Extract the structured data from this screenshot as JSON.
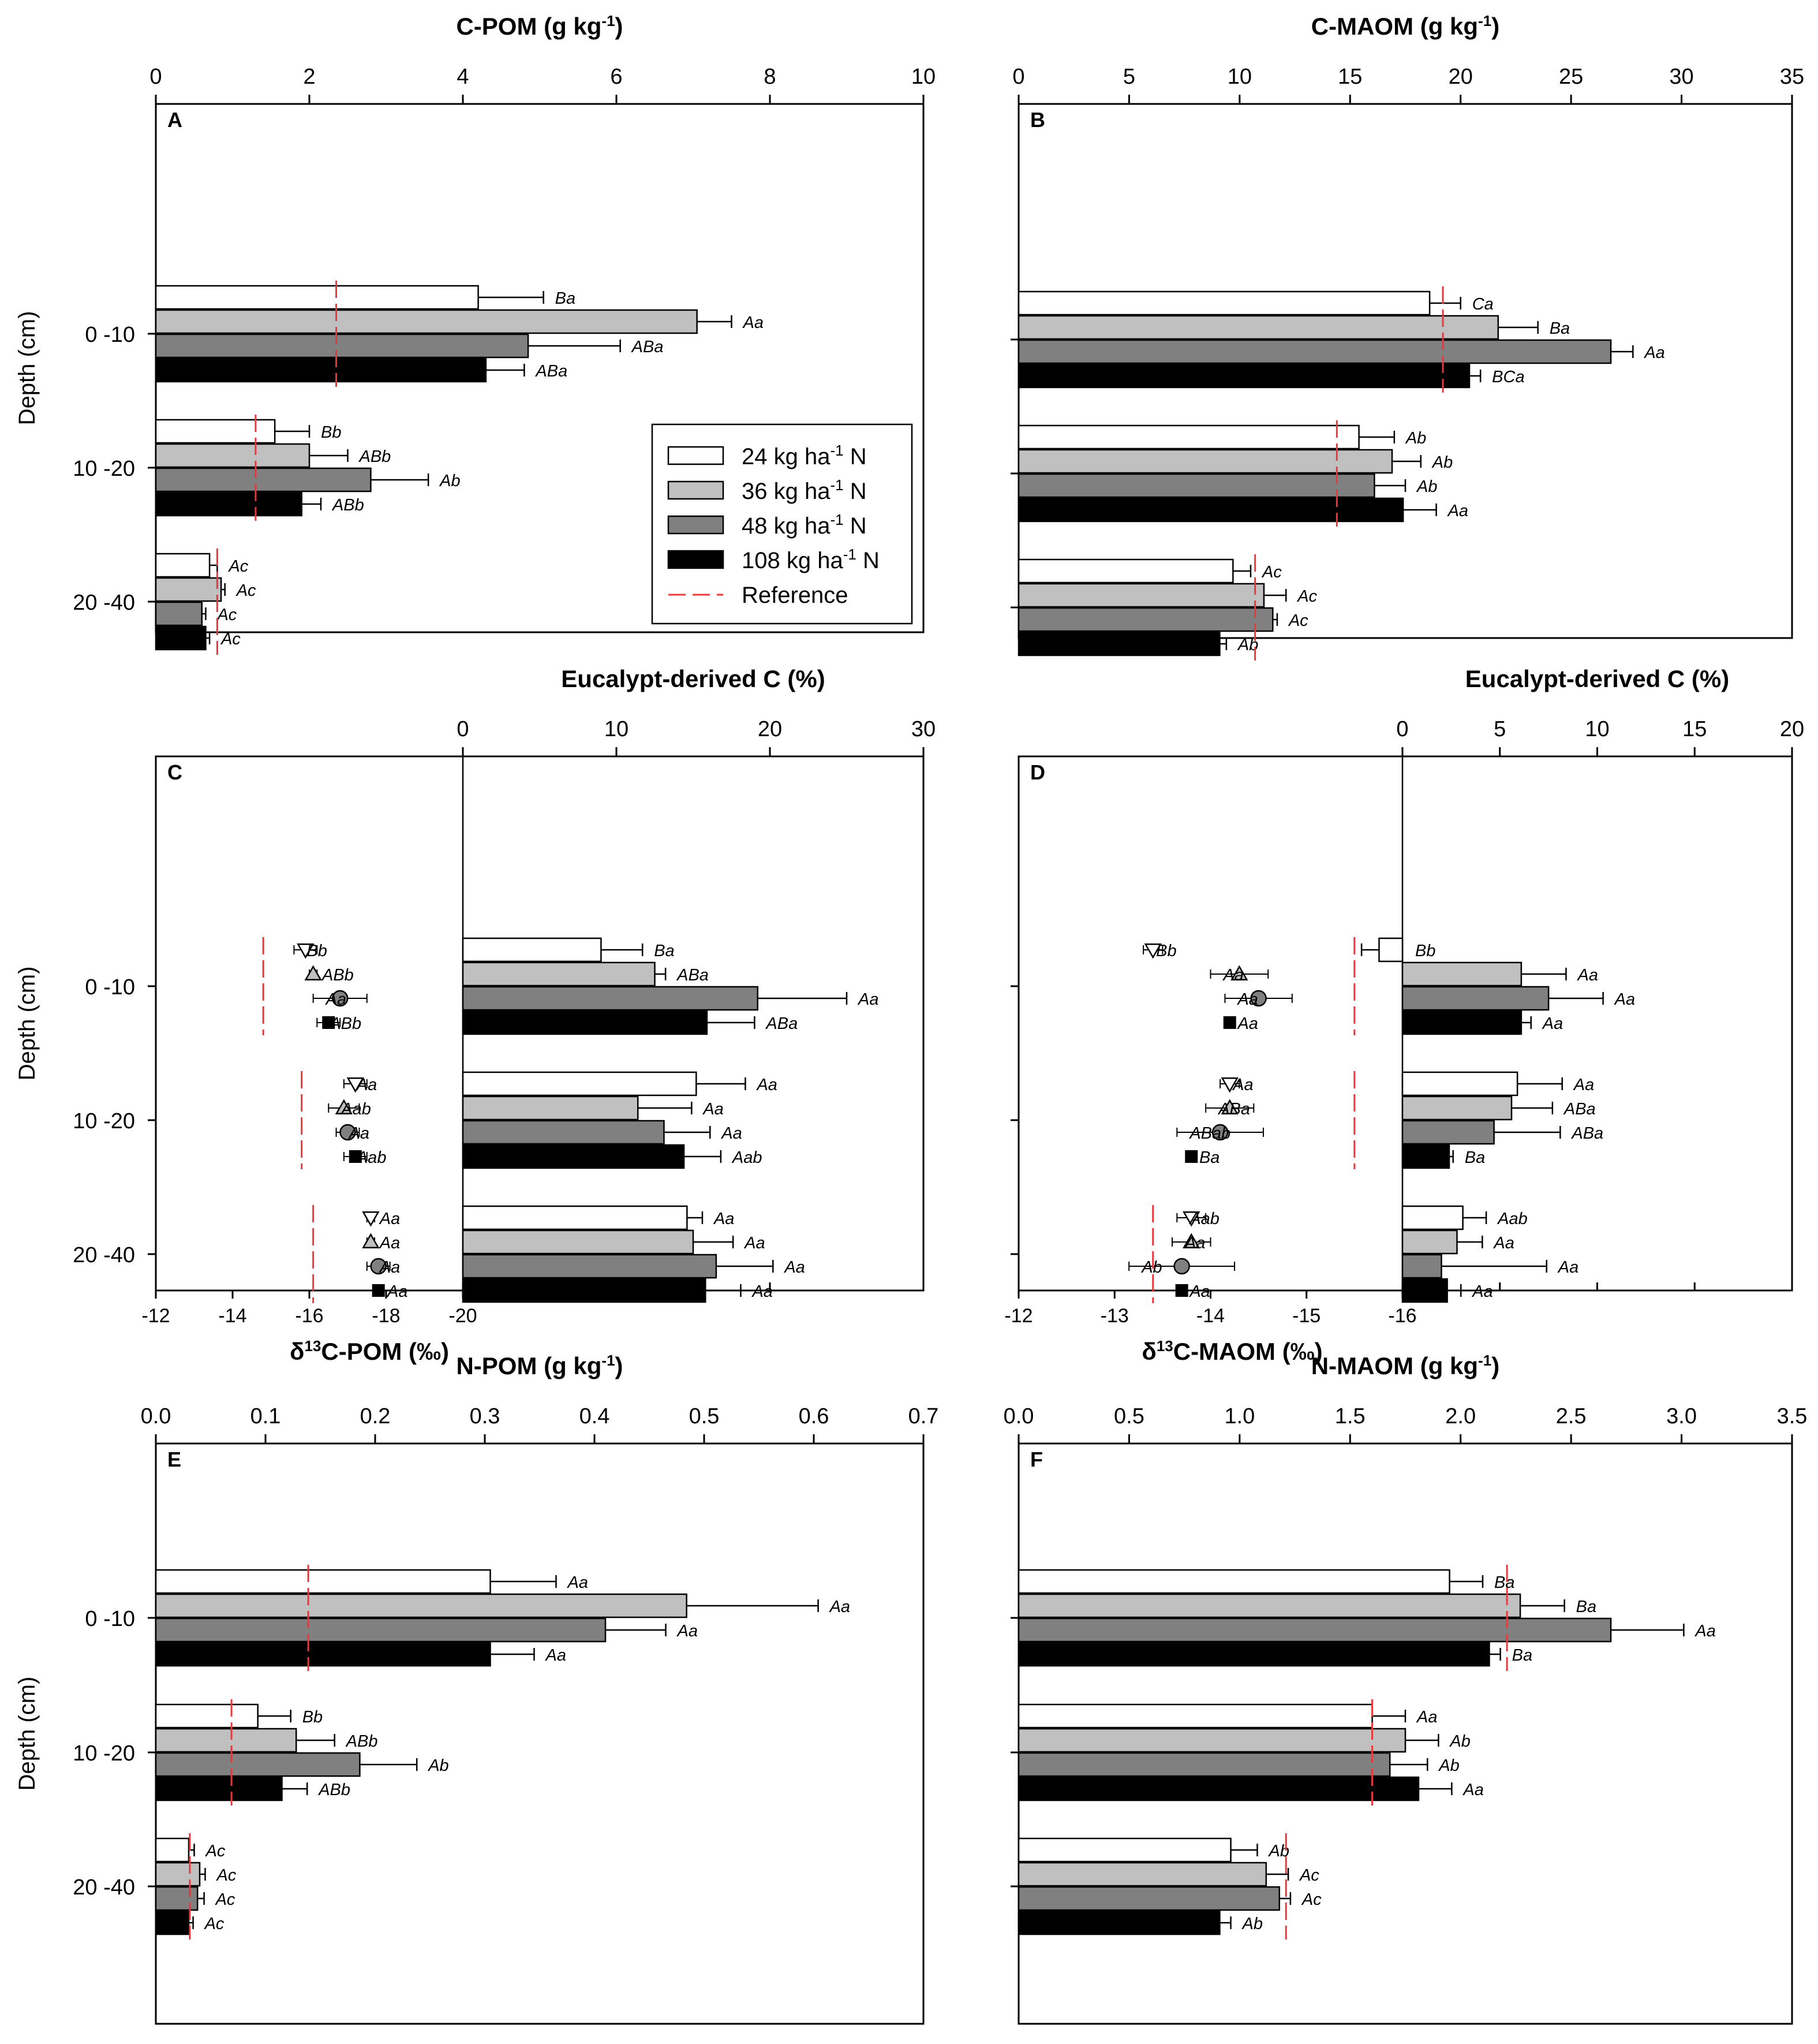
{
  "colors": {
    "n24": "#ffffff",
    "n36": "#c0c0c0",
    "n48": "#808080",
    "n108": "#000000",
    "reference": "#e8383d",
    "axis": "#000000"
  },
  "legend": {
    "items": [
      "24 kg ha",
      "36 kg ha",
      "48 kg ha",
      "108 kg ha",
      "Reference"
    ],
    "unit_sup": "-1",
    "unit_suffix": "N",
    "placement": "panel A lower-right"
  },
  "chart_data": [
    {
      "panel": "A",
      "type": "bar",
      "title": "C-POM (g kg",
      "title_sup": "-1",
      "title_tail": ")",
      "ylabel": "Depth (cm)",
      "categories": [
        "0 -10",
        "10 -20",
        "20 -40"
      ],
      "xlim": [
        0,
        10
      ],
      "xticks": [
        "0",
        "2",
        "4",
        "6",
        "8",
        "10"
      ],
      "series": [
        {
          "name": "24 kg ha-1 N",
          "values": [
            4.2,
            1.55,
            0.7
          ],
          "errors": [
            0.85,
            0.45,
            0.1
          ],
          "letters": [
            "Ba",
            "Bb",
            "Ac"
          ]
        },
        {
          "name": "36 kg ha-1 N",
          "values": [
            7.05,
            2.0,
            0.85
          ],
          "errors": [
            0.45,
            0.5,
            0.05
          ],
          "letters": [
            "Aa",
            "ABb",
            "Ac"
          ]
        },
        {
          "name": "48 kg ha-1 N",
          "values": [
            4.85,
            2.8,
            0.6
          ],
          "errors": [
            1.2,
            0.75,
            0.05
          ],
          "letters": [
            "ABa",
            "Ab",
            "Ac"
          ]
        },
        {
          "name": "108 kg ha-1 N",
          "values": [
            4.3,
            1.9,
            0.65
          ],
          "errors": [
            0.5,
            0.25,
            0.05
          ],
          "letters": [
            "ABa",
            "ABb",
            "Ac"
          ]
        }
      ],
      "reference": [
        2.35,
        1.3,
        0.8
      ]
    },
    {
      "panel": "B",
      "type": "bar",
      "title": "C-MAOM (g kg",
      "title_sup": "-1",
      "title_tail": ")",
      "categories": [
        "",
        "",
        ""
      ],
      "xlim": [
        0,
        35
      ],
      "xticks": [
        "0",
        "5",
        "10",
        "15",
        "20",
        "25",
        "30",
        "35"
      ],
      "series": [
        {
          "name": "24 kg ha-1 N",
          "values": [
            18.6,
            15.4,
            9.7
          ],
          "errors": [
            1.4,
            1.6,
            0.8
          ],
          "letters": [
            "Ca",
            "Ab",
            "Ac"
          ]
        },
        {
          "name": "36 kg ha-1 N",
          "values": [
            21.7,
            16.9,
            11.1
          ],
          "errors": [
            1.8,
            1.3,
            1.0
          ],
          "letters": [
            "Ba",
            "Ab",
            "Ac"
          ]
        },
        {
          "name": "48 kg ha-1 N",
          "values": [
            26.8,
            16.1,
            11.5
          ],
          "errors": [
            1.0,
            1.4,
            0.2
          ],
          "letters": [
            "Aa",
            "Ab",
            "Ac"
          ]
        },
        {
          "name": "108 kg ha-1 N",
          "values": [
            20.4,
            17.4,
            9.1
          ],
          "errors": [
            0.5,
            1.5,
            0.3
          ],
          "letters": [
            "BCa",
            "Aa",
            "Ab"
          ]
        }
      ],
      "reference": [
        19.2,
        14.4,
        10.7
      ]
    },
    {
      "panel": "C",
      "type": "bar+scatter",
      "title": "Eucalypt-derived C (%)",
      "xlabel_prefix": "δ",
      "xlabel_sup": "13",
      "xlabel_tail": "C-POM (‰)",
      "ylabel": "Depth (cm)",
      "categories": [
        "0 -10",
        "10 -20",
        "20 -40"
      ],
      "bar_xlim": [
        0,
        30
      ],
      "bar_xticks": [
        "0",
        "10",
        "20",
        "30"
      ],
      "delta_ticks": [
        "-12",
        "-14",
        "-16",
        "-18",
        "-20"
      ],
      "delta_range": [
        -12,
        -20
      ],
      "series": [
        {
          "name": "24 kg ha-1 N",
          "marker": "triangle-down",
          "values": [
            9.0,
            15.2,
            14.6
          ],
          "errors": [
            2.7,
            3.2,
            1.0
          ],
          "letters": [
            "Ba",
            "Aa",
            "Aa"
          ],
          "delta": [
            -15.9,
            -17.2,
            -17.6
          ],
          "delta_err": [
            0.3,
            0.3,
            0.1
          ],
          "delta_letters": [
            "Bb",
            "Aa",
            "Aa"
          ]
        },
        {
          "name": "36 kg ha-1 N",
          "marker": "triangle-up",
          "values": [
            12.5,
            11.4,
            15.0
          ],
          "errors": [
            0.7,
            3.5,
            2.6
          ],
          "letters": [
            "ABa",
            "Aa",
            "Aa"
          ],
          "delta": [
            -16.1,
            -16.9,
            -17.6
          ],
          "delta_err": [
            0.1,
            0.4,
            0.1
          ],
          "delta_letters": [
            "ABb",
            "Aab",
            "Aa"
          ]
        },
        {
          "name": "48 kg ha-1 N",
          "marker": "circle",
          "values": [
            19.2,
            13.1,
            16.5
          ],
          "errors": [
            5.8,
            3.0,
            3.7
          ],
          "letters": [
            "Aa",
            "Aa",
            "Aa"
          ],
          "delta": [
            -16.8,
            -17.0,
            -17.8
          ],
          "delta_err": [
            0.7,
            0.3,
            0.3
          ],
          "delta_letters": [
            "Aa",
            "Aa",
            "Aa"
          ]
        },
        {
          "name": "108 kg ha-1 N",
          "marker": "square",
          "values": [
            15.9,
            14.4,
            15.8
          ],
          "errors": [
            3.1,
            2.4,
            2.3
          ],
          "letters": [
            "ABa",
            "Aab",
            "Aa"
          ],
          "delta": [
            -16.5,
            -17.2,
            -17.8
          ],
          "delta_err": [
            0.3,
            0.3,
            0.1
          ],
          "delta_letters": [
            "ABb",
            "Aab",
            "Aa"
          ]
        }
      ],
      "reference_delta": [
        -14.8,
        -15.8,
        -16.1
      ]
    },
    {
      "panel": "D",
      "type": "bar+scatter",
      "title": "Eucalypt-derived C (%)",
      "xlabel_prefix": "δ",
      "xlabel_sup": "13",
      "xlabel_tail": "C-MAOM (‰)",
      "categories": [
        "",
        "",
        ""
      ],
      "bar_xlim": [
        0,
        20
      ],
      "bar_xticks": [
        "0",
        "5",
        "10",
        "15",
        "20"
      ],
      "delta_ticks": [
        "-12",
        "-13",
        "-14",
        "-15",
        "-16"
      ],
      "delta_range": [
        -12,
        -16
      ],
      "series": [
        {
          "name": "24 kg ha-1 N",
          "marker": "triangle-down",
          "values": [
            -1.2,
            5.9,
            3.1
          ],
          "errors": [
            0.9,
            2.3,
            1.2
          ],
          "letters": [
            "Bb",
            "Aa",
            "Aab"
          ],
          "delta": [
            -13.4,
            -14.2,
            -13.8
          ],
          "delta_err": [
            0.1,
            0.1,
            0.15
          ],
          "delta_letters": [
            "Bb",
            "Aa",
            "Aab"
          ]
        },
        {
          "name": "36 kg ha-1 N",
          "marker": "triangle-up",
          "values": [
            6.1,
            5.6,
            2.8
          ],
          "errors": [
            2.3,
            2.1,
            1.3
          ],
          "letters": [
            "Aa",
            "ABa",
            "Aa"
          ],
          "delta": [
            -14.3,
            -14.2,
            -13.8
          ],
          "delta_err": [
            0.3,
            0.25,
            0.2
          ],
          "delta_letters": [
            "Aa",
            "ABa",
            "Aa"
          ]
        },
        {
          "name": "48 kg ha-1 N",
          "marker": "circle",
          "values": [
            7.5,
            4.7,
            2.0
          ],
          "errors": [
            2.8,
            3.4,
            5.4
          ],
          "letters": [
            "Aa",
            "ABa",
            "Aa"
          ],
          "delta": [
            -14.5,
            -14.1,
            -13.7
          ],
          "delta_err": [
            0.35,
            0.45,
            0.55
          ],
          "delta_letters": [
            "Aa",
            "ABab",
            "Ab"
          ]
        },
        {
          "name": "108 kg ha-1 N",
          "marker": "square",
          "values": [
            6.1,
            2.4,
            2.3
          ],
          "errors": [
            0.5,
            0.2,
            0.7
          ],
          "letters": [
            "Aa",
            "Ba",
            "Aa"
          ],
          "delta": [
            -14.2,
            -13.8,
            -13.7
          ],
          "delta_err": [
            0.05,
            0.05,
            0.05
          ],
          "delta_letters": [
            "Aa",
            "Ba",
            "Aa"
          ]
        }
      ],
      "reference_delta": [
        -15.5,
        -15.5,
        -13.4
      ]
    },
    {
      "panel": "E",
      "type": "bar",
      "title": "N-POM (g kg",
      "title_sup": "-1",
      "title_tail": ")",
      "ylabel": "Depth (cm)",
      "categories": [
        "0 -10",
        "10 -20",
        "20 -40"
      ],
      "xlim": [
        0,
        0.7
      ],
      "xticks": [
        "0.0",
        "0.1",
        "0.2",
        "0.3",
        "0.4",
        "0.5",
        "0.6",
        "0.7"
      ],
      "series": [
        {
          "name": "24 kg ha-1 N",
          "values": [
            0.305,
            0.093,
            0.03
          ],
          "errors": [
            0.06,
            0.03,
            0.005
          ],
          "letters": [
            "Aa",
            "Bb",
            "Ac"
          ]
        },
        {
          "name": "36 kg ha-1 N",
          "values": [
            0.484,
            0.128,
            0.04
          ],
          "errors": [
            0.12,
            0.035,
            0.005
          ],
          "letters": [
            "Aa",
            "ABb",
            "Ac"
          ]
        },
        {
          "name": "48 kg ha-1 N",
          "values": [
            0.41,
            0.186,
            0.038
          ],
          "errors": [
            0.055,
            0.052,
            0.006
          ],
          "letters": [
            "Aa",
            "Ab",
            "Ac"
          ]
        },
        {
          "name": "108 kg ha-1 N",
          "values": [
            0.305,
            0.115,
            0.03
          ],
          "errors": [
            0.04,
            0.023,
            0.004
          ],
          "letters": [
            "Aa",
            "ABb",
            "Ac"
          ]
        }
      ],
      "reference": [
        0.139,
        0.069,
        0.031
      ]
    },
    {
      "panel": "F",
      "type": "bar",
      "title": "N-MAOM (g kg",
      "title_sup": "-1",
      "title_tail": ")",
      "categories": [
        "",
        "",
        ""
      ],
      "xlim": [
        0,
        3.5
      ],
      "xticks": [
        "0.0",
        "0.5",
        "1.0",
        "1.5",
        "2.0",
        "2.5",
        "3.0",
        "3.5"
      ],
      "series": [
        {
          "name": "24 kg ha-1 N",
          "values": [
            1.95,
            1.6,
            0.96
          ],
          "errors": [
            0.15,
            0.15,
            0.12
          ],
          "letters": [
            "Ba",
            "Aa",
            "Ab"
          ]
        },
        {
          "name": "36 kg ha-1 N",
          "values": [
            2.27,
            1.75,
            1.12
          ],
          "errors": [
            0.2,
            0.15,
            0.1
          ],
          "letters": [
            "Ba",
            "Ab",
            "Ac"
          ]
        },
        {
          "name": "48 kg ha-1 N",
          "values": [
            2.68,
            1.68,
            1.18
          ],
          "errors": [
            0.33,
            0.17,
            0.05
          ],
          "letters": [
            "Aa",
            "Ab",
            "Ac"
          ]
        },
        {
          "name": "108 kg ha-1 N",
          "values": [
            2.13,
            1.81,
            0.91
          ],
          "errors": [
            0.05,
            0.15,
            0.05
          ],
          "letters": [
            "Ba",
            "Aa",
            "Ab"
          ]
        }
      ],
      "reference": [
        2.21,
        1.6,
        1.21
      ]
    }
  ]
}
